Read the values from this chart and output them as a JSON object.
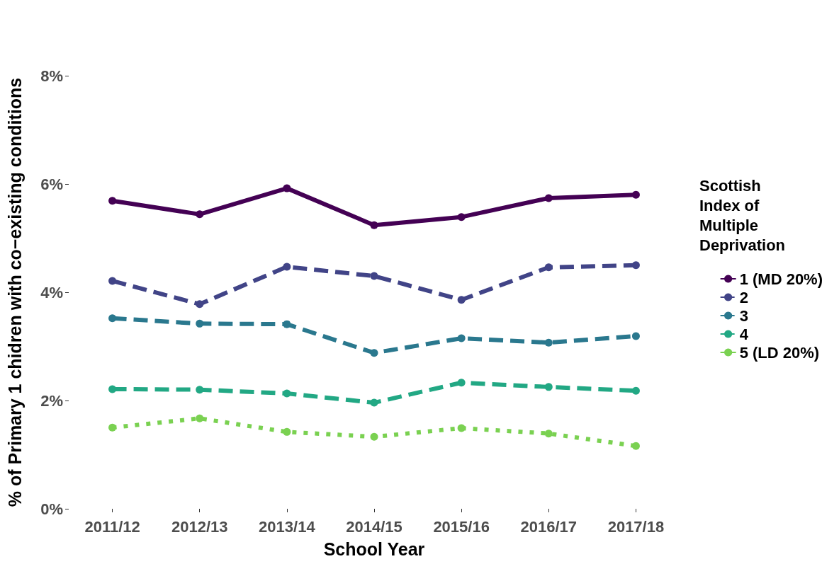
{
  "chart_data": {
    "type": "line",
    "xlabel": "School Year",
    "ylabel": "% of Primary 1 chidren with co−existing conditions",
    "legend_title": "Scottish\nIndex of\nMultiple\nDeprivation",
    "categories": [
      "2011/12",
      "2012/13",
      "2013/14",
      "2014/15",
      "2015/16",
      "2016/17",
      "2017/18"
    ],
    "series": [
      {
        "name": "1 (MD 20%)",
        "color": "#440154",
        "line_style": "solid",
        "values": [
          5.69,
          5.44,
          5.92,
          5.24,
          5.39,
          5.74,
          5.8
        ]
      },
      {
        "name": "2",
        "color": "#414487",
        "line_style": "dashed",
        "values": [
          4.21,
          3.78,
          4.47,
          4.3,
          3.86,
          4.46,
          4.5
        ]
      },
      {
        "name": "3",
        "color": "#2a788e",
        "line_style": "dashed",
        "values": [
          3.52,
          3.42,
          3.41,
          2.88,
          3.15,
          3.07,
          3.19
        ]
      },
      {
        "name": "4",
        "color": "#22a884",
        "line_style": "dashed",
        "values": [
          2.21,
          2.2,
          2.13,
          1.96,
          2.33,
          2.25,
          2.18
        ]
      },
      {
        "name": "5 (LD 20%)",
        "color": "#7ad151",
        "line_style": "dotted",
        "values": [
          1.5,
          1.67,
          1.42,
          1.33,
          1.49,
          1.39,
          1.16
        ]
      }
    ],
    "ylim": [
      0,
      8
    ],
    "yticks": [
      {
        "value": 0,
        "label": "0%"
      },
      {
        "value": 2,
        "label": "2%"
      },
      {
        "value": 4,
        "label": "4%"
      },
      {
        "value": 6,
        "label": "6%"
      },
      {
        "value": 8,
        "label": "8%"
      }
    ],
    "grid": false,
    "legend": "right",
    "marker": "circle"
  }
}
